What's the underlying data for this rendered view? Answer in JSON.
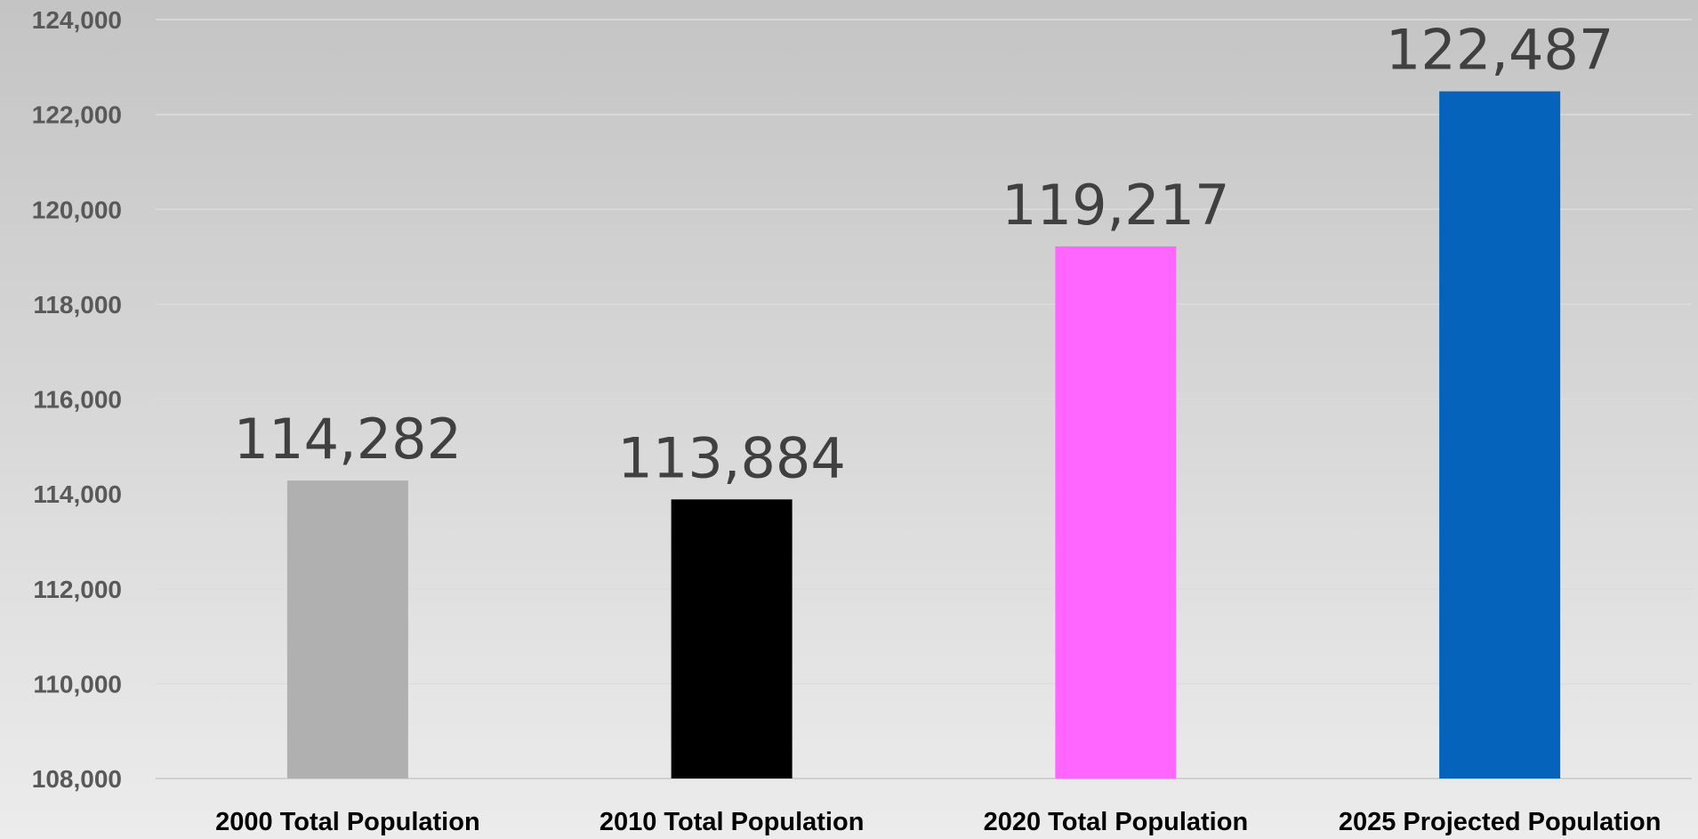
{
  "chart_data": {
    "type": "bar",
    "title": "",
    "xlabel": "",
    "ylabel": "",
    "categories": [
      "2000 Total Population",
      "2010 Total Population",
      "2020 Total Population",
      "2025 Projected Population"
    ],
    "values": [
      114282,
      113884,
      119217,
      122487
    ],
    "data_labels": [
      "114,282",
      "113,884",
      "119,217",
      "122,487"
    ],
    "bar_colors": [
      "#b0b0b0",
      "#000000",
      "#ff66ff",
      "#0563bb"
    ],
    "ylim": [
      108000,
      124000
    ],
    "y_ticks": [
      108000,
      110000,
      112000,
      114000,
      116000,
      118000,
      120000,
      122000,
      124000
    ],
    "y_tick_labels": [
      "108,000",
      "110,000",
      "112,000",
      "114,000",
      "116,000",
      "118,000",
      "120,000",
      "122,000",
      "124,000"
    ],
    "grid": true,
    "legend": "none"
  }
}
